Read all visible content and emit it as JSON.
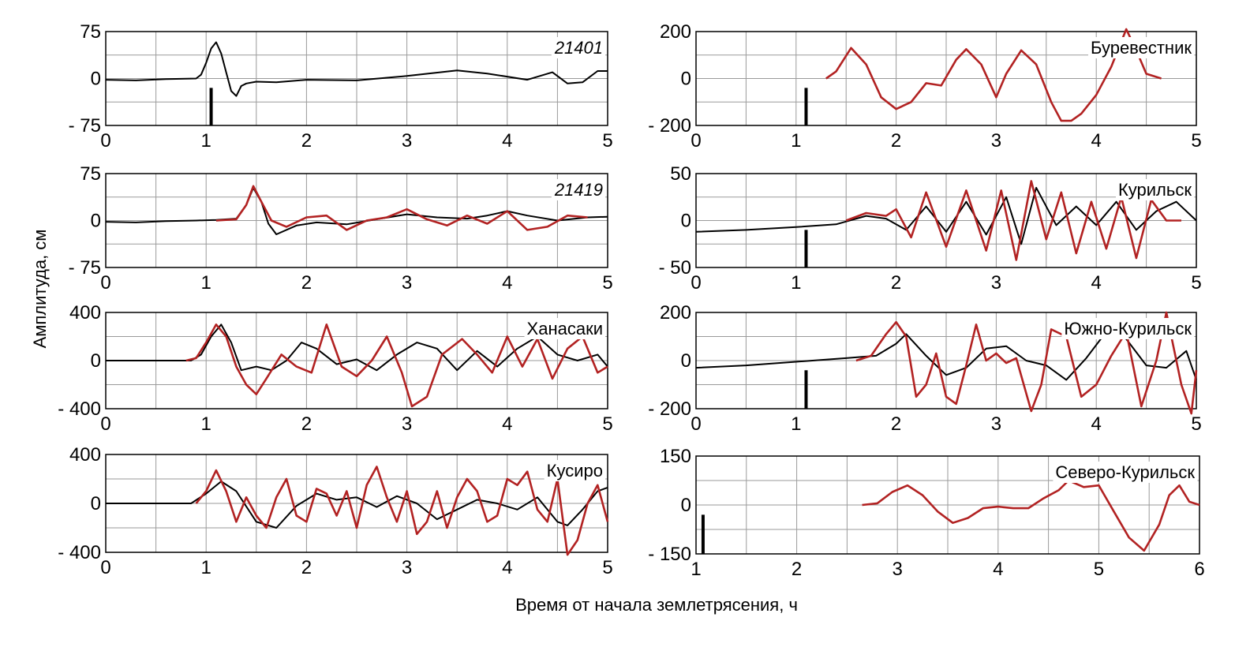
{
  "figure": {
    "ylabel": "Амплитуда,  см",
    "xlabel": "Время от начала землетрясения,  ч"
  },
  "colors": {
    "observed": "#000000",
    "modeled": "#b22222",
    "grid": "#9a9a9a",
    "event_marker": "#000000"
  },
  "chart_data": [
    {
      "type": "line",
      "label": "21401",
      "label_italic": true,
      "xlim": [
        0,
        5
      ],
      "ylim": [
        -75,
        75
      ],
      "xticks": [
        0,
        1,
        2,
        3,
        4,
        5
      ],
      "yticks": [
        75,
        0,
        -75
      ],
      "ytick_labels": [
        "75",
        "0",
        "- 75"
      ],
      "grid": true,
      "event_marker_x": 1.05,
      "series": [
        {
          "role": "observed",
          "x": [
            0,
            0.3,
            0.6,
            0.9,
            0.95,
            1.0,
            1.05,
            1.1,
            1.15,
            1.2,
            1.25,
            1.3,
            1.35,
            1.4,
            1.5,
            1.7,
            2.0,
            2.5,
            3.0,
            3.5,
            3.8,
            4.2,
            4.45,
            4.6,
            4.75,
            4.9,
            5.0
          ],
          "y": [
            -2,
            -3,
            -1,
            0,
            6,
            25,
            48,
            58,
            40,
            10,
            -20,
            -28,
            -12,
            -8,
            -5,
            -6,
            -2,
            -3,
            4,
            13,
            8,
            -2,
            10,
            -8,
            -6,
            12,
            12
          ]
        }
      ]
    },
    {
      "type": "line",
      "label": "Буревестник",
      "xlim": [
        0,
        5
      ],
      "ylim": [
        -200,
        200
      ],
      "xticks": [
        0,
        1,
        2,
        3,
        4,
        5
      ],
      "yticks": [
        200,
        0,
        -200
      ],
      "ytick_labels": [
        "200",
        "0",
        "- 200"
      ],
      "grid": true,
      "event_marker_x": 1.1,
      "series": [
        {
          "role": "modeled",
          "x": [
            1.3,
            1.4,
            1.55,
            1.7,
            1.85,
            2.0,
            2.15,
            2.3,
            2.45,
            2.6,
            2.7,
            2.85,
            3.0,
            3.1,
            3.25,
            3.4,
            3.55,
            3.65,
            3.75,
            3.85,
            4.0,
            4.15,
            4.3,
            4.4,
            4.5,
            4.65
          ],
          "y": [
            0,
            30,
            130,
            60,
            -80,
            -130,
            -100,
            -20,
            -30,
            80,
            125,
            60,
            -80,
            20,
            120,
            60,
            -100,
            -180,
            -180,
            -150,
            -70,
            50,
            210,
            120,
            20,
            0
          ]
        }
      ]
    },
    {
      "type": "line",
      "label": "21419",
      "label_italic": true,
      "xlim": [
        0,
        5
      ],
      "ylim": [
        -75,
        75
      ],
      "xticks": [
        0,
        1,
        2,
        3,
        4,
        5
      ],
      "yticks": [
        75,
        0,
        -75
      ],
      "ytick_labels": [
        "75",
        "0",
        "- 75"
      ],
      "grid": true,
      "series": [
        {
          "role": "observed",
          "x": [
            0,
            0.3,
            0.6,
            0.9,
            1.1,
            1.3,
            1.4,
            1.47,
            1.55,
            1.62,
            1.7,
            1.9,
            2.1,
            2.4,
            2.7,
            3.0,
            3.3,
            3.6,
            3.8,
            4.0,
            4.2,
            4.5,
            4.8,
            5.0
          ],
          "y": [
            -2,
            -3,
            -1,
            0,
            1,
            3,
            25,
            52,
            30,
            -5,
            -22,
            -8,
            -3,
            -6,
            2,
            10,
            5,
            3,
            8,
            15,
            8,
            0,
            5,
            6
          ]
        },
        {
          "role": "modeled",
          "x": [
            1.1,
            1.3,
            1.4,
            1.47,
            1.55,
            1.65,
            1.8,
            2.0,
            2.2,
            2.4,
            2.6,
            2.8,
            3.0,
            3.2,
            3.4,
            3.6,
            3.8,
            4.0,
            4.2,
            4.4,
            4.6,
            4.8
          ],
          "y": [
            0,
            2,
            25,
            55,
            30,
            0,
            -10,
            5,
            8,
            -15,
            0,
            5,
            18,
            2,
            -8,
            8,
            -5,
            15,
            -15,
            -10,
            8,
            5
          ]
        }
      ]
    },
    {
      "type": "line",
      "label": "Курильск",
      "xlim": [
        0,
        5
      ],
      "ylim": [
        -50,
        50
      ],
      "xticks": [
        0,
        1,
        2,
        3,
        4,
        5
      ],
      "yticks": [
        50,
        0,
        -50
      ],
      "ytick_labels": [
        "50",
        "0",
        "- 50"
      ],
      "grid": true,
      "event_marker_x": 1.1,
      "series": [
        {
          "role": "observed",
          "x": [
            0,
            0.5,
            1.0,
            1.4,
            1.7,
            1.9,
            2.1,
            2.3,
            2.5,
            2.7,
            2.9,
            3.1,
            3.25,
            3.4,
            3.6,
            3.8,
            4.0,
            4.2,
            4.4,
            4.6,
            4.8,
            5.0
          ],
          "y": [
            -12,
            -10,
            -7,
            -4,
            5,
            2,
            -10,
            15,
            -12,
            20,
            -15,
            25,
            -25,
            35,
            -5,
            15,
            -5,
            20,
            -10,
            10,
            20,
            0
          ]
        },
        {
          "role": "modeled",
          "x": [
            1.5,
            1.7,
            1.9,
            2.0,
            2.15,
            2.3,
            2.5,
            2.7,
            2.9,
            3.05,
            3.2,
            3.35,
            3.5,
            3.65,
            3.8,
            3.95,
            4.1,
            4.25,
            4.4,
            4.55,
            4.7,
            4.85
          ],
          "y": [
            0,
            8,
            5,
            12,
            -18,
            30,
            -28,
            32,
            -32,
            32,
            -42,
            42,
            -20,
            30,
            -35,
            20,
            -30,
            25,
            -40,
            22,
            0,
            0
          ]
        }
      ]
    },
    {
      "type": "line",
      "label": "Ханасаки",
      "xlim": [
        0,
        5
      ],
      "ylim": [
        -400,
        400
      ],
      "xticks": [
        0,
        1,
        2,
        3,
        4,
        5
      ],
      "yticks": [
        400,
        0,
        -400
      ],
      "ytick_labels": [
        "400",
        "0",
        "- 400"
      ],
      "grid": true,
      "series": [
        {
          "role": "observed",
          "x": [
            0,
            0.5,
            0.85,
            0.95,
            1.05,
            1.15,
            1.25,
            1.35,
            1.5,
            1.65,
            1.8,
            1.95,
            2.1,
            2.3,
            2.5,
            2.7,
            2.9,
            3.1,
            3.3,
            3.5,
            3.7,
            3.9,
            4.1,
            4.3,
            4.5,
            4.7,
            4.9,
            5.0
          ],
          "y": [
            0,
            0,
            0,
            50,
            200,
            300,
            150,
            -80,
            -50,
            -80,
            0,
            150,
            100,
            -30,
            10,
            -80,
            50,
            150,
            100,
            -80,
            80,
            -50,
            100,
            200,
            50,
            0,
            50,
            -50
          ]
        },
        {
          "role": "modeled",
          "x": [
            0.8,
            0.9,
            1.0,
            1.1,
            1.2,
            1.3,
            1.4,
            1.5,
            1.6,
            1.75,
            1.9,
            2.05,
            2.2,
            2.35,
            2.5,
            2.65,
            2.8,
            2.95,
            3.05,
            3.2,
            3.35,
            3.55,
            3.7,
            3.85,
            4.0,
            4.15,
            4.3,
            4.45,
            4.6,
            4.75,
            4.9,
            5.0
          ],
          "y": [
            0,
            20,
            150,
            300,
            200,
            -50,
            -200,
            -280,
            -150,
            50,
            -50,
            -100,
            300,
            -50,
            -130,
            0,
            200,
            -100,
            -380,
            -300,
            50,
            180,
            50,
            -100,
            200,
            -50,
            180,
            -150,
            100,
            200,
            -100,
            -50
          ]
        }
      ]
    },
    {
      "type": "line",
      "label": "Южно-Курильск",
      "xlim": [
        0,
        5
      ],
      "ylim": [
        -200,
        200
      ],
      "xticks": [
        0,
        1,
        2,
        3,
        4,
        5
      ],
      "yticks": [
        200,
        0,
        -200
      ],
      "ytick_labels": [
        "200",
        "0",
        "- 200"
      ],
      "grid": true,
      "event_marker_x": 1.1,
      "series": [
        {
          "role": "observed",
          "x": [
            0,
            0.5,
            1.0,
            1.5,
            1.8,
            2.0,
            2.1,
            2.3,
            2.5,
            2.7,
            2.9,
            3.1,
            3.3,
            3.5,
            3.7,
            3.9,
            4.1,
            4.3,
            4.5,
            4.7,
            4.9,
            5.0
          ],
          "y": [
            -30,
            -20,
            -5,
            10,
            20,
            70,
            110,
            20,
            -60,
            -30,
            50,
            60,
            0,
            -20,
            -80,
            10,
            120,
            90,
            -20,
            -30,
            40,
            -80
          ]
        },
        {
          "role": "modeled",
          "x": [
            1.6,
            1.75,
            1.9,
            2.0,
            2.1,
            2.2,
            2.3,
            2.4,
            2.5,
            2.6,
            2.7,
            2.8,
            2.9,
            3.0,
            3.1,
            3.2,
            3.35,
            3.45,
            3.55,
            3.7,
            3.85,
            4.0,
            4.15,
            4.3,
            4.45,
            4.6,
            4.7,
            4.85,
            4.95,
            5.0
          ],
          "y": [
            0,
            20,
            110,
            160,
            100,
            -150,
            -100,
            30,
            -150,
            -180,
            -20,
            150,
            0,
            30,
            -10,
            10,
            -210,
            -100,
            130,
            100,
            -150,
            -100,
            20,
            120,
            -190,
            0,
            200,
            -100,
            -220,
            -40
          ]
        }
      ]
    },
    {
      "type": "line",
      "label": "Кусиро",
      "xlim": [
        0,
        5
      ],
      "ylim": [
        -400,
        400
      ],
      "xticks": [
        0,
        1,
        2,
        3,
        4,
        5
      ],
      "yticks": [
        400,
        0,
        -400
      ],
      "ytick_labels": [
        "400",
        "0",
        "- 400"
      ],
      "grid": true,
      "series": [
        {
          "role": "observed",
          "x": [
            0,
            0.5,
            0.85,
            1.0,
            1.15,
            1.3,
            1.5,
            1.7,
            1.9,
            2.1,
            2.3,
            2.5,
            2.7,
            2.9,
            3.1,
            3.3,
            3.5,
            3.7,
            3.9,
            4.1,
            4.3,
            4.5,
            4.6,
            4.75,
            4.9,
            5.0
          ],
          "y": [
            0,
            0,
            0,
            80,
            180,
            100,
            -150,
            -200,
            -20,
            80,
            30,
            50,
            -30,
            60,
            0,
            -130,
            -50,
            30,
            0,
            -50,
            50,
            -150,
            -180,
            -50,
            100,
            130
          ]
        },
        {
          "role": "modeled",
          "x": [
            0.9,
            1.0,
            1.1,
            1.2,
            1.3,
            1.4,
            1.5,
            1.6,
            1.7,
            1.8,
            1.9,
            2.0,
            2.1,
            2.2,
            2.3,
            2.4,
            2.5,
            2.6,
            2.7,
            2.8,
            2.9,
            3.0,
            3.1,
            3.2,
            3.3,
            3.4,
            3.5,
            3.6,
            3.7,
            3.8,
            3.9,
            4.0,
            4.1,
            4.2,
            4.3,
            4.4,
            4.5,
            4.6,
            4.7,
            4.8,
            4.9,
            5.0
          ],
          "y": [
            0,
            100,
            270,
            100,
            -150,
            50,
            -100,
            -200,
            50,
            200,
            -100,
            -150,
            120,
            80,
            -100,
            100,
            -200,
            150,
            300,
            50,
            -150,
            100,
            -250,
            -150,
            100,
            -200,
            50,
            200,
            100,
            -150,
            -100,
            200,
            150,
            260,
            -50,
            -150,
            200,
            -420,
            -300,
            0,
            150,
            -150
          ]
        }
      ]
    },
    {
      "type": "line",
      "label": "Северо-Курильск",
      "xlim": [
        1,
        6
      ],
      "ylim": [
        -150,
        150
      ],
      "xticks": [
        1,
        2,
        3,
        4,
        5,
        6
      ],
      "yticks": [
        150,
        0,
        -150
      ],
      "ytick_labels": [
        "150",
        "0",
        "- 150"
      ],
      "grid": true,
      "event_marker_x": 1.07,
      "series": [
        {
          "role": "modeled",
          "x": [
            2.65,
            2.8,
            2.95,
            3.1,
            3.25,
            3.4,
            3.55,
            3.7,
            3.85,
            4.0,
            4.15,
            4.3,
            4.45,
            4.6,
            4.7,
            4.85,
            5.0,
            5.15,
            5.3,
            5.45,
            5.6,
            5.7,
            5.8,
            5.9,
            6.0
          ],
          "y": [
            0,
            5,
            40,
            60,
            30,
            -20,
            -55,
            -40,
            -10,
            -5,
            -10,
            -10,
            20,
            45,
            75,
            55,
            60,
            -20,
            -100,
            -140,
            -60,
            30,
            60,
            10,
            0
          ]
        }
      ]
    }
  ]
}
